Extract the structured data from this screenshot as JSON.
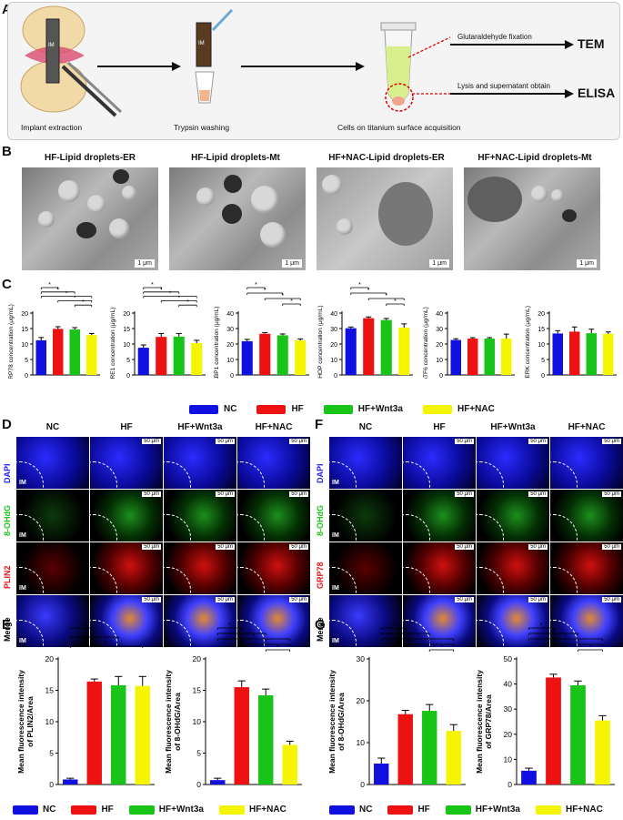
{
  "panel_labels": {
    "A": "A",
    "B": "B",
    "C": "C",
    "D": "D",
    "E": "E",
    "F": "F",
    "G": "G"
  },
  "panelA": {
    "steps": [
      "Implant extraction",
      "Trypsin washing",
      "Cells on titanium surface acquisition"
    ],
    "branch_top": "Glutaraldehyde fixation",
    "branch_bottom": "Lysis and supernatant obtain",
    "out_top": "TEM",
    "out_bottom": "ELISA",
    "im_label": "IM"
  },
  "panelB": {
    "titles": [
      "HF-Lipid droplets-ER",
      "HF-Lipid droplets-Mt",
      "HF+NAC-Lipid droplets-ER",
      "HF+NAC-Lipid droplets-Mt"
    ],
    "scale": "1 μm"
  },
  "groups": [
    "NC",
    "HF",
    "HF+Wnt3a",
    "HF+NAC"
  ],
  "colors": {
    "NC": "#1010e0",
    "HF": "#ee1111",
    "HF+Wnt3a": "#18c418",
    "HF+NAC": "#f5f500"
  },
  "fluor": {
    "D_rows": [
      "DAPI",
      "8-OHdG",
      "PLIN2",
      "Merge"
    ],
    "F_rows": [
      "DAPI",
      "8-OHdG",
      "GRP78",
      "Merge"
    ],
    "row_colors": [
      "#2020ff",
      "#18c418",
      "#ee1111",
      "#000000"
    ],
    "scale": "50 μm",
    "im": "IM"
  },
  "star": "*",
  "chart_data": [
    {
      "type": "bar",
      "panel": "C",
      "ylabel": "GRP78 concentration (μg/mL)",
      "categories": [
        "NC",
        "HF",
        "HF+Wnt3a",
        "HF+NAC"
      ],
      "values": [
        11.2,
        14.9,
        14.7,
        12.9
      ],
      "errors": [
        0.9,
        0.7,
        0.6,
        0.5
      ],
      "ylim": [
        0,
        20
      ],
      "yticks": [
        0,
        5,
        10,
        15,
        20
      ],
      "sig": [
        [
          0,
          1
        ],
        [
          0,
          2
        ],
        [
          0,
          3
        ],
        [
          1,
          3
        ],
        [
          2,
          3
        ]
      ]
    },
    {
      "type": "bar",
      "panel": "C",
      "ylabel": "IRE1 concentration (μg/mL)",
      "categories": [
        "NC",
        "HF",
        "HF+Wnt3a",
        "HF+NAC"
      ],
      "values": [
        8.8,
        12.3,
        12.4,
        10.3
      ],
      "errors": [
        0.9,
        1.1,
        1.0,
        0.9
      ],
      "ylim": [
        0,
        20
      ],
      "yticks": [
        0,
        5,
        10,
        15,
        20
      ],
      "sig": [
        [
          0,
          1
        ],
        [
          0,
          2
        ],
        [
          0,
          3
        ],
        [
          1,
          3
        ],
        [
          2,
          3
        ]
      ]
    },
    {
      "type": "bar",
      "panel": "C",
      "ylabel": "XBP1 concentration (μg/mL)",
      "categories": [
        "NC",
        "HF",
        "HF+Wnt3a",
        "HF+NAC"
      ],
      "values": [
        21.8,
        26.6,
        25.6,
        22.3
      ],
      "errors": [
        1.2,
        0.8,
        0.9,
        1.0
      ],
      "ylim": [
        0,
        40
      ],
      "yticks": [
        0,
        10,
        20,
        30,
        40
      ],
      "sig": [
        [
          0,
          1
        ],
        [
          0,
          2
        ],
        [
          1,
          3
        ],
        [
          2,
          3
        ]
      ]
    },
    {
      "type": "bar",
      "panel": "C",
      "ylabel": "CHOP concentration (μg/mL)",
      "categories": [
        "NC",
        "HF",
        "HF+Wnt3a",
        "HF+NAC"
      ],
      "values": [
        30.2,
        36.7,
        35.5,
        30.6
      ],
      "errors": [
        0.8,
        0.8,
        1.0,
        2.4
      ],
      "ylim": [
        0,
        40
      ],
      "yticks": [
        0,
        10,
        20,
        30,
        40
      ],
      "sig": [
        [
          0,
          1
        ],
        [
          0,
          2
        ],
        [
          1,
          3
        ],
        [
          2,
          3
        ]
      ]
    },
    {
      "type": "bar",
      "panel": "C",
      "ylabel": "ATF6 concentration (μg/mL)",
      "categories": [
        "NC",
        "HF",
        "HF+Wnt3a",
        "HF+NAC"
      ],
      "values": [
        22.6,
        23.5,
        23.5,
        23.6
      ],
      "errors": [
        0.8,
        0.6,
        0.6,
        2.8
      ],
      "ylim": [
        0,
        40
      ],
      "yticks": [
        0,
        10,
        20,
        30,
        40
      ],
      "sig": []
    },
    {
      "type": "bar",
      "panel": "C",
      "ylabel": "PERK concentration (μg/mL)",
      "categories": [
        "NC",
        "HF",
        "HF+Wnt3a",
        "HF+NAC"
      ],
      "values": [
        13.4,
        14.0,
        13.5,
        13.3
      ],
      "errors": [
        0.9,
        1.5,
        1.3,
        0.6
      ],
      "ylim": [
        0,
        20
      ],
      "yticks": [
        0,
        5,
        10,
        15,
        20
      ],
      "sig": []
    },
    {
      "type": "bar",
      "panel": "E",
      "ylabel": "Mean fluorescence intensity of PLIN2/Area",
      "categories": [
        "NC",
        "HF",
        "HF+Wnt3a",
        "HF+NAC"
      ],
      "values": [
        0.8,
        16.4,
        15.8,
        15.7
      ],
      "errors": [
        0.2,
        0.4,
        1.4,
        1.5
      ],
      "ylim": [
        0,
        20
      ],
      "yticks": [
        0,
        5,
        10,
        15,
        20
      ],
      "sig": [
        [
          0,
          1
        ],
        [
          0,
          2
        ],
        [
          0,
          3
        ]
      ]
    },
    {
      "type": "bar",
      "panel": "E",
      "ylabel": "Mean fluorescence intensity of 8-OHdG/Area",
      "categories": [
        "NC",
        "HF",
        "HF+Wnt3a",
        "HF+NAC"
      ],
      "values": [
        0.7,
        15.5,
        14.2,
        6.3
      ],
      "errors": [
        0.3,
        1.0,
        1.0,
        0.6
      ],
      "ylim": [
        0,
        20
      ],
      "yticks": [
        0,
        5,
        10,
        15,
        20
      ],
      "sig": [
        [
          0,
          1
        ],
        [
          0,
          2
        ],
        [
          0,
          3
        ],
        [
          1,
          3
        ],
        [
          2,
          3
        ]
      ]
    },
    {
      "type": "bar",
      "panel": "G",
      "ylabel": "Mean fluorescence intensity of 8-OHdG/Area",
      "categories": [
        "NC",
        "HF",
        "HF+Wnt3a",
        "HF+NAC"
      ],
      "values": [
        5.0,
        16.8,
        17.6,
        12.8
      ],
      "errors": [
        1.3,
        0.9,
        1.5,
        1.5
      ],
      "ylim": [
        0,
        30
      ],
      "yticks": [
        0,
        10,
        20,
        30
      ],
      "sig": [
        [
          0,
          1
        ],
        [
          0,
          2
        ],
        [
          0,
          3
        ],
        [
          1,
          3
        ],
        [
          2,
          3
        ]
      ]
    },
    {
      "type": "bar",
      "panel": "G",
      "ylabel": "Mean fluorescence intensity of GRP78/Area",
      "categories": [
        "NC",
        "HF",
        "HF+Wnt3a",
        "HF+NAC"
      ],
      "values": [
        5.5,
        42.6,
        39.5,
        25.5
      ],
      "errors": [
        1.0,
        1.3,
        1.7,
        1.9
      ],
      "ylim": [
        0,
        50
      ],
      "yticks": [
        0,
        10,
        20,
        30,
        40,
        50
      ],
      "sig": [
        [
          0,
          1
        ],
        [
          0,
          2
        ],
        [
          0,
          3
        ],
        [
          1,
          3
        ],
        [
          2,
          3
        ]
      ]
    }
  ]
}
